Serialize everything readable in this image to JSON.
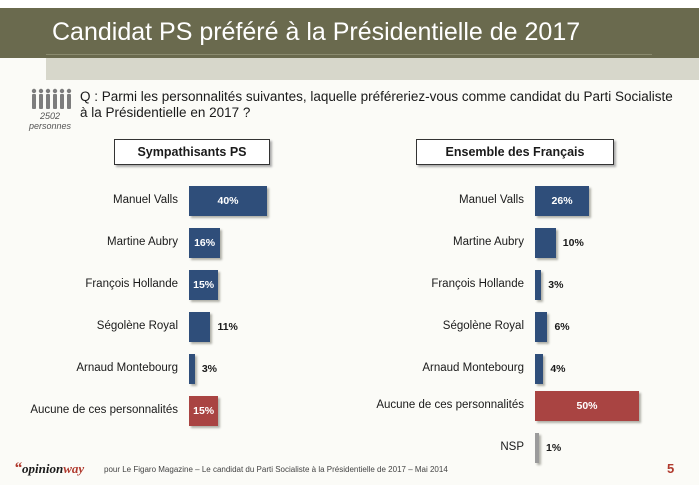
{
  "title": "Candidat PS préféré à la Présidentielle de 2017",
  "sample": {
    "count": "2502",
    "unit": "personnes"
  },
  "question": "Q : Parmi les personnalités suivantes, laquelle préféreriez-vous comme candidat du Parti Socialiste à la Présidentielle en 2017 ?",
  "colors": {
    "bar": "#2f4e7a",
    "highlight": "#a94442",
    "nsp": "#9b9b9b"
  },
  "chart_data": [
    {
      "type": "bar",
      "title": "Sympathisants PS",
      "categories": [
        "Manuel Valls",
        "Martine Aubry",
        "François Hollande",
        "Ségolène Royal",
        "Arnaud Montebourg",
        "Aucune de ces personnalités"
      ],
      "values": [
        40,
        16,
        15,
        11,
        3,
        15
      ],
      "labels": [
        "40%",
        "16%",
        "15%",
        "11%",
        "3%",
        "15%"
      ],
      "highlight": [
        5
      ]
    },
    {
      "type": "bar",
      "title": "Ensemble des Français",
      "categories": [
        "Manuel Valls",
        "Martine Aubry",
        "François Hollande",
        "Ségolène Royal",
        "Arnaud Montebourg",
        "Aucune de ces personnalités",
        "NSP"
      ],
      "values": [
        26,
        10,
        3,
        6,
        4,
        50,
        1
      ],
      "labels": [
        "26%",
        "10%",
        "3%",
        "6%",
        "4%",
        "50%",
        "1%"
      ],
      "highlight": [
        5
      ],
      "grey": [
        6
      ]
    }
  ],
  "footer": {
    "logo_quote": "“",
    "logo_a": "opinion",
    "logo_b": "way",
    "text": "pour Le Figaro Magazine – Le candidat du Parti Socialiste à la Présidentielle de 2017 – Mai 2014",
    "page": "5"
  }
}
